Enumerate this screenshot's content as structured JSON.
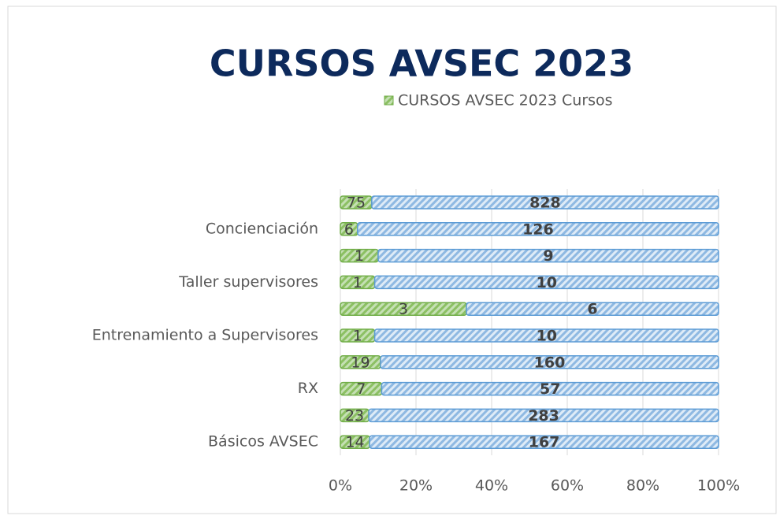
{
  "chart_data": {
    "type": "stacked_bar_100_horizontal",
    "title": "CURSOS AVSEC 2023",
    "categories": [
      null,
      "Concienciación",
      null,
      "Taller supervisores",
      null,
      "Entrenamiento a Supervisores",
      null,
      "RX",
      null,
      "Básicos AVSEC"
    ],
    "series": [
      {
        "name": "CURSOS AVSEC 2023 Cursos",
        "color": "#70ad47",
        "values": [
          75,
          6,
          1,
          1,
          3,
          1,
          19,
          7,
          23,
          14
        ]
      },
      {
        "color": "#5b9bd5",
        "values": [
          828,
          126,
          9,
          10,
          6,
          10,
          160,
          57,
          283,
          167
        ]
      }
    ],
    "xlim": [
      0,
      100
    ],
    "xticks": [
      {
        "value": 0,
        "label": "0%"
      },
      {
        "value": 20,
        "label": "20%"
      },
      {
        "value": 40,
        "label": "40%"
      },
      {
        "value": 60,
        "label": "60%"
      },
      {
        "value": 80,
        "label": "80%"
      },
      {
        "value": 100,
        "label": "100%"
      }
    ],
    "grid": true
  }
}
